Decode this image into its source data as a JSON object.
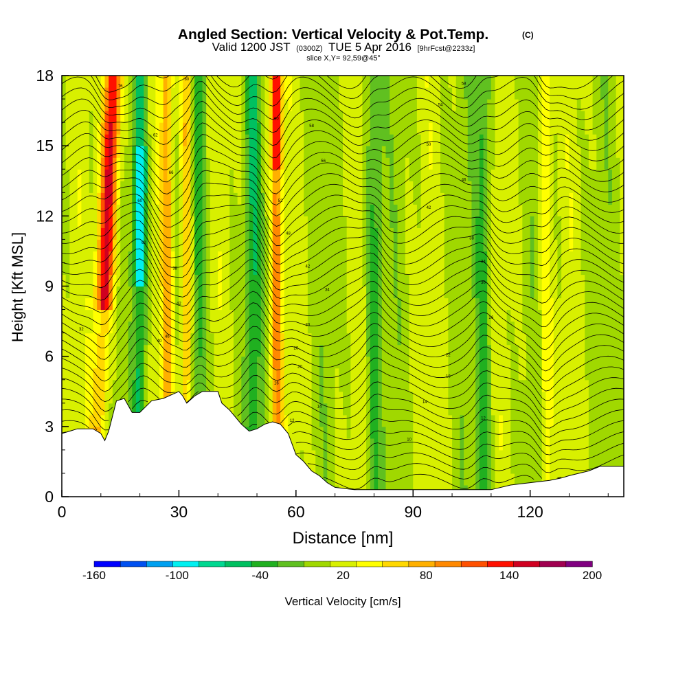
{
  "chart_data": {
    "type": "heatmap",
    "title": "Angled Section: Vertical Velocity & Pot.Temp.",
    "title_tag": "(C)",
    "subtitle": {
      "valid": "Valid 1200 JST",
      "zulu": "(0300Z)",
      "date": "TUE 5 Apr 2016",
      "forecast": "[9hrFcst@2233z]"
    },
    "slice_label": "slice X,Y= 92,59@45°",
    "xlabel": "Distance [nm]",
    "ylabel": "Height [Kft MSL]",
    "xlim": [
      0,
      144
    ],
    "ylim": [
      0,
      18
    ],
    "x_ticks": [
      0,
      30,
      60,
      90,
      120
    ],
    "y_ticks": [
      0,
      3,
      6,
      9,
      12,
      15,
      18
    ],
    "colorbar": {
      "label": "Vertical Velocity [cm/s]",
      "tick_labels": [
        -160,
        -100,
        -40,
        20,
        80,
        140,
        200
      ],
      "range": [
        -160,
        200
      ],
      "colors": [
        "#0000ff",
        "#0050f0",
        "#00a0f0",
        "#00f0f0",
        "#00d890",
        "#00c060",
        "#20b020",
        "#60c020",
        "#a0d800",
        "#d8f000",
        "#ffff00",
        "#ffd800",
        "#ffb000",
        "#ff8800",
        "#ff5000",
        "#ff1000",
        "#d00020",
        "#a00050",
        "#800080"
      ]
    },
    "updraft_cores_nm": [
      11,
      27,
      32,
      55,
      124
    ],
    "downdraft_cores_nm": [
      20,
      35,
      49,
      80,
      108
    ],
    "terrain_kft": {
      "x": [
        0,
        2,
        4,
        8,
        10,
        11,
        12,
        14,
        16,
        18,
        20,
        23,
        26,
        30,
        31,
        32,
        34,
        36,
        40,
        41,
        43,
        46,
        48,
        50,
        52,
        54,
        56,
        58,
        60,
        62,
        64,
        66,
        68,
        70,
        75,
        80,
        90,
        100,
        110,
        115,
        120,
        125,
        128,
        130,
        135,
        138,
        140,
        144
      ],
      "y": [
        2.7,
        2.8,
        2.9,
        2.9,
        2.7,
        2.4,
        2.8,
        4.1,
        4.2,
        3.6,
        3.6,
        4.1,
        4.2,
        4.5,
        4.3,
        4.0,
        4.3,
        4.5,
        4.5,
        4.0,
        3.7,
        3.1,
        2.8,
        2.9,
        3.1,
        3.2,
        3.1,
        2.7,
        1.8,
        1.5,
        1.1,
        0.9,
        0.6,
        0.4,
        0.3,
        0.3,
        0.3,
        0.3,
        0.3,
        0.5,
        0.6,
        0.7,
        0.8,
        0.9,
        1.1,
        1.3,
        1.3,
        1.3
      ]
    },
    "contours": {
      "variable": "Potential temperature",
      "labels": [
        {
          "x": 5,
          "y": 7.1,
          "text": "32"
        },
        {
          "x": 15,
          "y": 17.5,
          "text": "76"
        },
        {
          "x": 32,
          "y": 17.8,
          "text": "80"
        },
        {
          "x": 24,
          "y": 15.4,
          "text": "62"
        },
        {
          "x": 28,
          "y": 13.8,
          "text": "66"
        },
        {
          "x": 20,
          "y": 12.6,
          "text": "60"
        },
        {
          "x": 21,
          "y": 10.8,
          "text": "62"
        },
        {
          "x": 29,
          "y": 9.7,
          "text": "38"
        },
        {
          "x": 30,
          "y": 8.2,
          "text": "42"
        },
        {
          "x": 25,
          "y": 6.6,
          "text": "40"
        },
        {
          "x": 27,
          "y": 6.8,
          "text": "46"
        },
        {
          "x": 55,
          "y": 16.1,
          "text": "60"
        },
        {
          "x": 64,
          "y": 15.8,
          "text": "58"
        },
        {
          "x": 67,
          "y": 14.3,
          "text": "56"
        },
        {
          "x": 56,
          "y": 12.6,
          "text": "52"
        },
        {
          "x": 58,
          "y": 11.2,
          "text": "48"
        },
        {
          "x": 63,
          "y": 9.8,
          "text": "42"
        },
        {
          "x": 68,
          "y": 8.8,
          "text": "34"
        },
        {
          "x": 63,
          "y": 7.3,
          "text": "30"
        },
        {
          "x": 60,
          "y": 6.3,
          "text": "26"
        },
        {
          "x": 61,
          "y": 5.5,
          "text": "20"
        },
        {
          "x": 55,
          "y": 4.8,
          "text": "16"
        },
        {
          "x": 66,
          "y": 3.8,
          "text": "14"
        },
        {
          "x": 59,
          "y": 3.2,
          "text": "12"
        },
        {
          "x": 103,
          "y": 17.6,
          "text": "58"
        },
        {
          "x": 97,
          "y": 16.7,
          "text": "54"
        },
        {
          "x": 94,
          "y": 15.0,
          "text": "50"
        },
        {
          "x": 103,
          "y": 13.5,
          "text": "46"
        },
        {
          "x": 94,
          "y": 12.3,
          "text": "42"
        },
        {
          "x": 105,
          "y": 11.0,
          "text": "38"
        },
        {
          "x": 108,
          "y": 10.0,
          "text": "34"
        },
        {
          "x": 108,
          "y": 9.1,
          "text": "30"
        },
        {
          "x": 110,
          "y": 7.6,
          "text": "26"
        },
        {
          "x": 99,
          "y": 6.0,
          "text": "22"
        },
        {
          "x": 99,
          "y": 5.1,
          "text": "18"
        },
        {
          "x": 93,
          "y": 4.0,
          "text": "14"
        },
        {
          "x": 108,
          "y": 3.3,
          "text": "12"
        },
        {
          "x": 89,
          "y": 2.4,
          "text": "10"
        }
      ]
    }
  }
}
